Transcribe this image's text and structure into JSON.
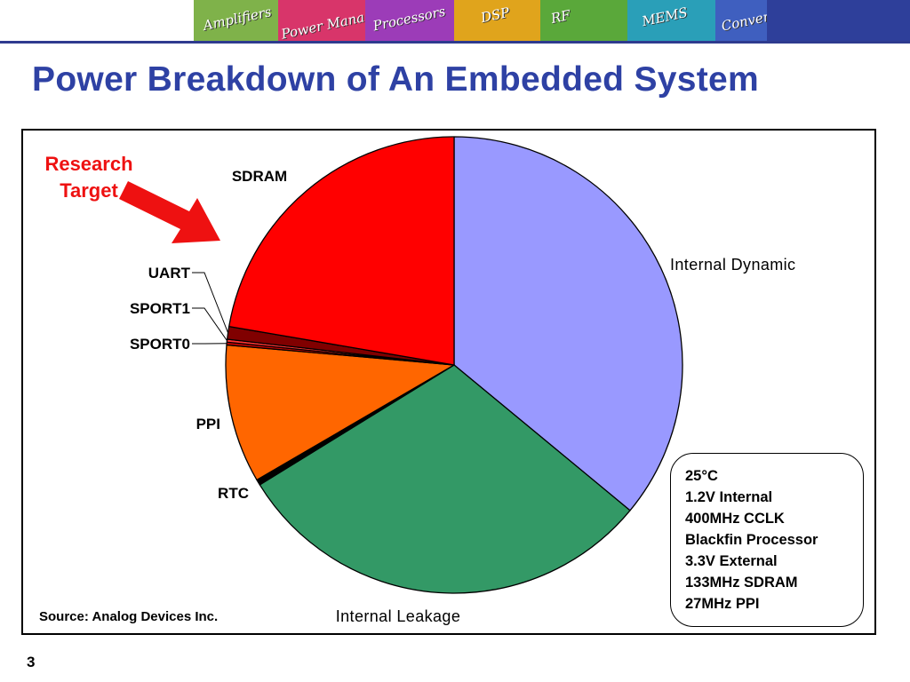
{
  "banner": {
    "tiles": [
      {
        "text": "",
        "color": "#ffffff"
      },
      {
        "text": "Amplifiers",
        "color": "#7fb24a"
      },
      {
        "text": "Power Management",
        "color": "#d8356a"
      },
      {
        "text": "Processors",
        "color": "#9c3cb8"
      },
      {
        "text": "DSP",
        "color": "#e0a41c"
      },
      {
        "text": "RF",
        "color": "#5aa83a"
      },
      {
        "text": "MEMS",
        "color": "#2a9fb8"
      },
      {
        "text": "Converters",
        "color": "#3f5fbf"
      },
      {
        "text": "",
        "color": "#2e3f9a"
      }
    ]
  },
  "slide": {
    "title": "Power Breakdown of An Embedded System",
    "page_number": "3"
  },
  "annotation": {
    "line1": "Research",
    "line2": "Target",
    "color": "#ee1111"
  },
  "conditions": [
    "25°C",
    "1.2V Internal",
    "400MHz CCLK",
    "Blackfin Processor",
    "3.3V External",
    "133MHz SDRAM",
    "27MHz PPI"
  ],
  "source": "Source: Analog Devices Inc.",
  "chart_data": {
    "type": "pie",
    "title": "",
    "start_angle_deg": 0,
    "direction": "clockwise",
    "slices": [
      {
        "label": "Internal Dynamic",
        "value": 36.0,
        "color": "#9999ff"
      },
      {
        "label": "Internal Leakage",
        "value": 30.2,
        "color": "#339966"
      },
      {
        "label": "RTC",
        "value": 0.4,
        "color": "#000000"
      },
      {
        "label": "PPI",
        "value": 9.8,
        "color": "#ff6600"
      },
      {
        "label": "SPORT0",
        "value": 0.2,
        "color": "#cc0000"
      },
      {
        "label": "SPORT1",
        "value": 0.2,
        "color": "#ff3333"
      },
      {
        "label": "UART",
        "value": 0.9,
        "color": "#800000"
      },
      {
        "label": "SDRAM",
        "value": 22.3,
        "color": "#ff0000"
      }
    ]
  }
}
